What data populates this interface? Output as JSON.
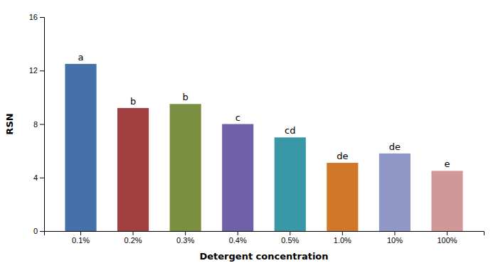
{
  "chart_data": {
    "type": "bar",
    "categories": [
      "0.1%",
      "0.2%",
      "0.3%",
      "0.4%",
      "0.5%",
      "1.0%",
      "10%",
      "100%"
    ],
    "values": [
      12.5,
      9.2,
      9.5,
      8.0,
      7.0,
      5.1,
      5.8,
      4.5
    ],
    "annotations": [
      "a",
      "b",
      "b",
      "c",
      "cd",
      "de",
      "de",
      "e"
    ],
    "colors": [
      "#4472a8",
      "#a04040",
      "#7a9040",
      "#7060a8",
      "#3898a8",
      "#d07828",
      "#9098c8",
      "#d09898"
    ],
    "xlabel": "Detergent concentration",
    "ylabel": "RSN",
    "ylim": [
      0,
      16
    ],
    "yticks": [
      0,
      4,
      8,
      12,
      16
    ],
    "grid": false
  }
}
